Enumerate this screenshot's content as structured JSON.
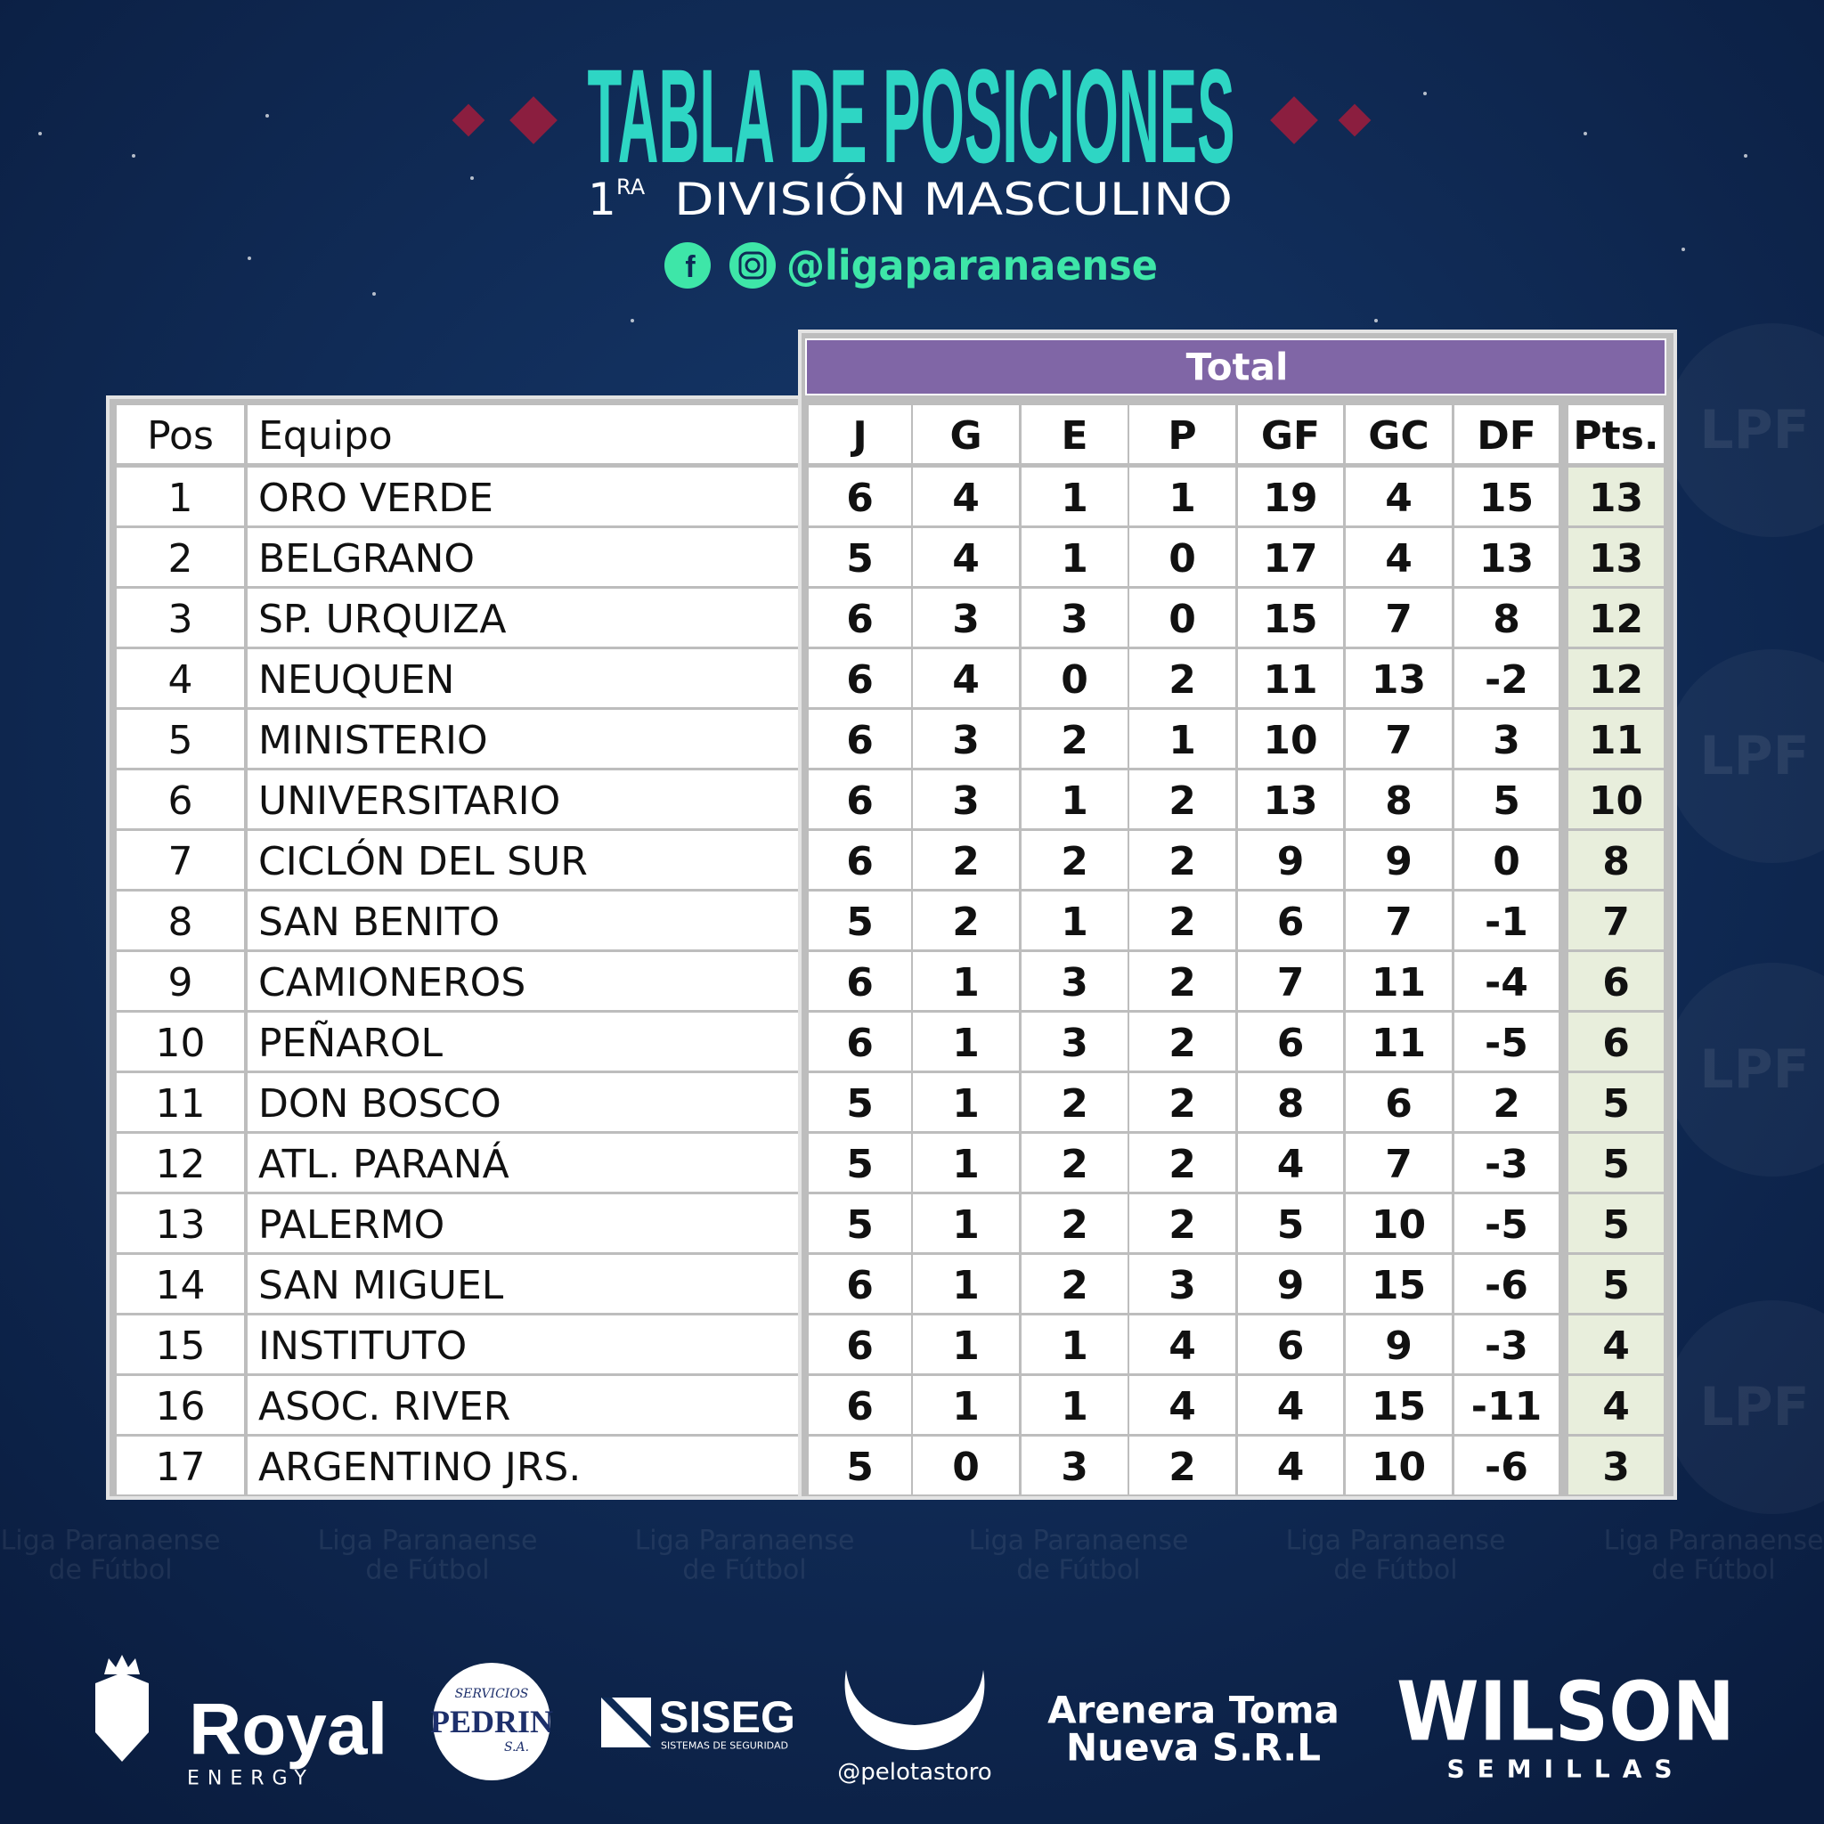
{
  "header": {
    "title": "TABLA DE POSICIONES",
    "subtitle_number": "1",
    "subtitle_suffix": "RA",
    "subtitle_text": "DIVISIÓN MASCULINO",
    "social_handle": "@ligaparanaense"
  },
  "table": {
    "group_header": "Total",
    "columns": [
      "Pos",
      "Equipo",
      "J",
      "G",
      "E",
      "P",
      "GF",
      "GC",
      "DF",
      "Pts."
    ],
    "rows": [
      [
        1,
        "ORO VERDE",
        6,
        4,
        1,
        1,
        19,
        4,
        15,
        13
      ],
      [
        2,
        "BELGRANO",
        5,
        4,
        1,
        0,
        17,
        4,
        13,
        13
      ],
      [
        3,
        "SP. URQUIZA",
        6,
        3,
        3,
        0,
        15,
        7,
        8,
        12
      ],
      [
        4,
        "NEUQUEN",
        6,
        4,
        0,
        2,
        11,
        13,
        -2,
        12
      ],
      [
        5,
        "MINISTERIO",
        6,
        3,
        2,
        1,
        10,
        7,
        3,
        11
      ],
      [
        6,
        "UNIVERSITARIO",
        6,
        3,
        1,
        2,
        13,
        8,
        5,
        10
      ],
      [
        7,
        "CICLÓN DEL SUR",
        6,
        2,
        2,
        2,
        9,
        9,
        0,
        8
      ],
      [
        8,
        "SAN BENITO",
        5,
        2,
        1,
        2,
        6,
        7,
        -1,
        7
      ],
      [
        9,
        "CAMIONEROS",
        6,
        1,
        3,
        2,
        7,
        11,
        -4,
        6
      ],
      [
        10,
        "PEÑAROL",
        6,
        1,
        3,
        2,
        6,
        11,
        -5,
        6
      ],
      [
        11,
        "DON BOSCO",
        5,
        1,
        2,
        2,
        8,
        6,
        2,
        5
      ],
      [
        12,
        "ATL. PARANÁ",
        5,
        1,
        2,
        2,
        4,
        7,
        -3,
        5
      ],
      [
        13,
        "PALERMO",
        5,
        1,
        2,
        2,
        5,
        10,
        -5,
        5
      ],
      [
        14,
        "SAN MIGUEL",
        6,
        1,
        2,
        3,
        9,
        15,
        -6,
        5
      ],
      [
        15,
        "INSTITUTO",
        6,
        1,
        1,
        4,
        6,
        9,
        -3,
        4
      ],
      [
        16,
        "ASOC. RIVER",
        6,
        1,
        1,
        4,
        4,
        15,
        -11,
        4
      ],
      [
        17,
        "ARGENTINO JRS.",
        5,
        0,
        3,
        2,
        4,
        10,
        -6,
        3
      ]
    ]
  },
  "watermark": {
    "line1": "Liga Paranaense",
    "line2": "de Fútbol",
    "logo": "LPF"
  },
  "sponsors": {
    "royal": "Royal",
    "royal_sub": "ENERGY",
    "pedrin_top": "SERVICIOS",
    "pedrin": "PEDRIN",
    "pedrin_sub": "S.A.",
    "siseg": "SISEG",
    "siseg_sub": "SISTEMAS DE SEGURIDAD",
    "pelotas": "@pelotastoro",
    "arenera_line1": "Arenera Toma",
    "arenera_line2": "Nueva S.R.L",
    "wilson": "WILSON",
    "wilson_sub": "SEMILLAS"
  }
}
